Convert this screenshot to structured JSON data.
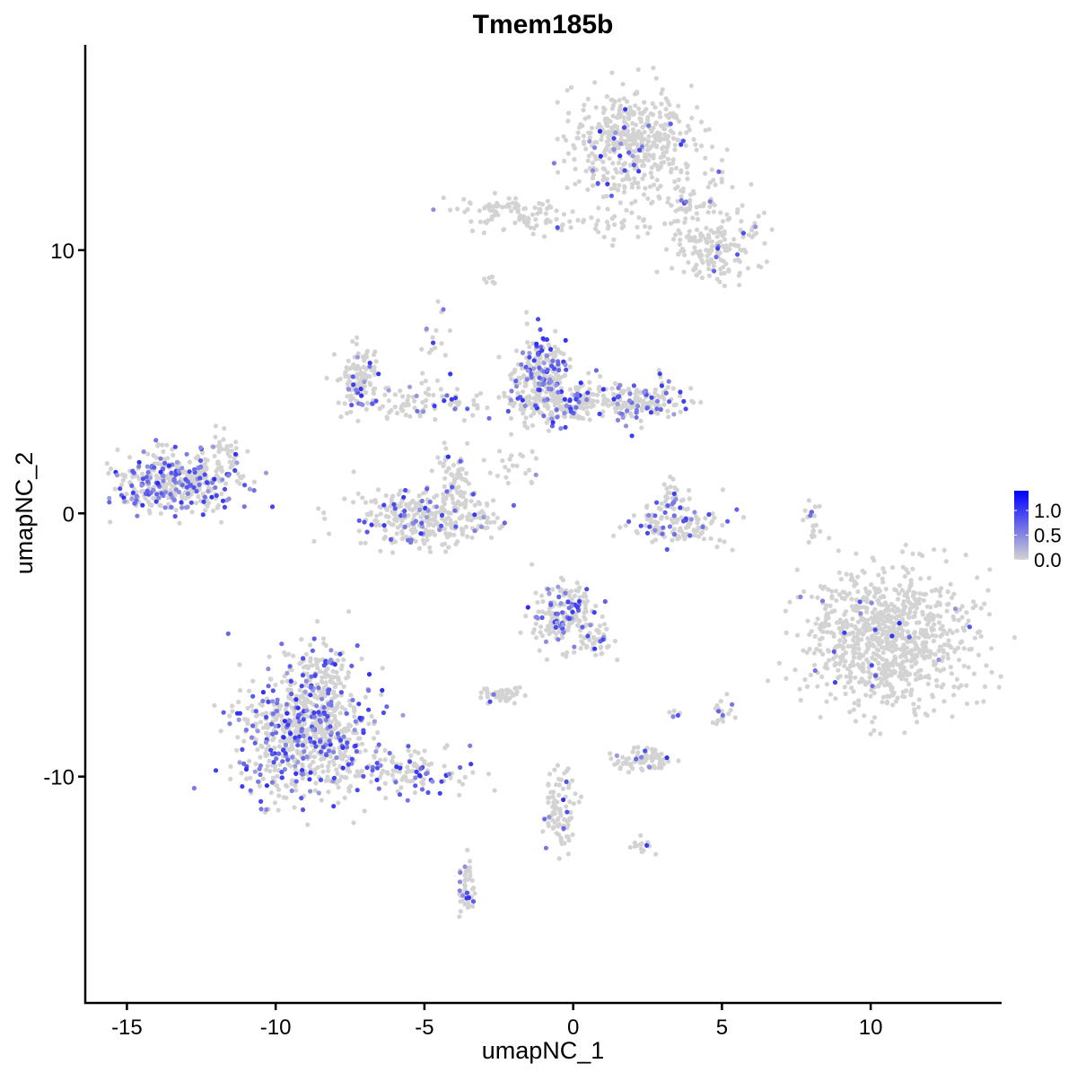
{
  "chart_data": {
    "type": "scatter",
    "title": "Tmem185b",
    "xlabel": "umapNC_1",
    "ylabel": "umapNC_2",
    "xlim": [
      -16.4,
      14.4
    ],
    "ylim": [
      -18.6,
      17.8
    ],
    "x_ticks": [
      -15,
      -10,
      -5,
      0,
      5,
      10
    ],
    "y_ticks": [
      -10,
      0,
      10
    ],
    "x_tick_labels": [
      "-15",
      "-10",
      "-5",
      "0",
      "5",
      "10"
    ],
    "y_tick_labels": [
      "-10",
      "0",
      "10"
    ],
    "grid": false,
    "color_scale": {
      "low": "#D3D3D3",
      "high": "#0000FF",
      "min": 0,
      "max": 1.4
    },
    "legend": {
      "position": "right",
      "ticks": [
        1.0,
        0.5,
        0.0
      ],
      "tick_labels": [
        "1.0",
        "0.5",
        "0.0"
      ]
    },
    "note_values": "clusters approximate the point clouds: center and spread in data units, n = approx. cell count, expressed = fraction of cells with expression > 0",
    "clusters": [
      {
        "center": [
          1.9,
          14.2
        ],
        "spread": [
          1.0,
          1.0
        ],
        "n": 450,
        "expressed": 0.05
      },
      {
        "center": [
          4.8,
          10.0
        ],
        "spread": [
          0.8,
          0.7
        ],
        "n": 170,
        "expressed": 0.04
      },
      {
        "center": [
          3.6,
          12.0
        ],
        "spread": [
          1.0,
          0.7
        ],
        "n": 80,
        "expressed": 0.04
      },
      {
        "center": [
          -2.0,
          11.4
        ],
        "spread": [
          0.9,
          0.35
        ],
        "n": 90,
        "expressed": 0.03
      },
      {
        "center": [
          0.8,
          11.0
        ],
        "spread": [
          1.0,
          0.3
        ],
        "n": 40,
        "expressed": 0.02
      },
      {
        "center": [
          -1.0,
          5.3
        ],
        "spread": [
          0.45,
          0.7
        ],
        "n": 230,
        "expressed": 0.25
      },
      {
        "center": [
          -0.7,
          4.2
        ],
        "spread": [
          0.8,
          0.5
        ],
        "n": 160,
        "expressed": 0.15
      },
      {
        "center": [
          1.9,
          4.3
        ],
        "spread": [
          1.0,
          0.4
        ],
        "n": 200,
        "expressed": 0.15
      },
      {
        "center": [
          -7.2,
          5.1
        ],
        "spread": [
          0.4,
          0.6
        ],
        "n": 110,
        "expressed": 0.2
      },
      {
        "center": [
          -5.0,
          4.2
        ],
        "spread": [
          1.3,
          0.3
        ],
        "n": 90,
        "expressed": 0.08
      },
      {
        "center": [
          -5.0,
          -0.2
        ],
        "spread": [
          1.2,
          0.5
        ],
        "n": 330,
        "expressed": 0.15
      },
      {
        "center": [
          -4.0,
          1.2
        ],
        "spread": [
          0.3,
          0.6
        ],
        "n": 60,
        "expressed": 0.08
      },
      {
        "center": [
          -13.3,
          1.2
        ],
        "spread": [
          1.0,
          0.55
        ],
        "n": 420,
        "expressed": 0.33
      },
      {
        "center": [
          -11.8,
          2.2
        ],
        "spread": [
          0.3,
          0.4
        ],
        "n": 30,
        "expressed": 0.05
      },
      {
        "center": [
          3.5,
          -0.6
        ],
        "spread": [
          0.8,
          0.35
        ],
        "n": 120,
        "expressed": 0.2
      },
      {
        "center": [
          3.3,
          0.6
        ],
        "spread": [
          0.3,
          0.4
        ],
        "n": 40,
        "expressed": 0.2
      },
      {
        "center": [
          10.6,
          -4.8
        ],
        "spread": [
          1.35,
          1.35
        ],
        "n": 900,
        "expressed": 0.02
      },
      {
        "center": [
          -0.3,
          -3.9
        ],
        "spread": [
          0.55,
          0.55
        ],
        "n": 200,
        "expressed": 0.2
      },
      {
        "center": [
          0.8,
          -4.8
        ],
        "spread": [
          0.3,
          0.3
        ],
        "n": 40,
        "expressed": 0.15
      },
      {
        "center": [
          -9.0,
          -8.4
        ],
        "spread": [
          1.1,
          1.2
        ],
        "n": 700,
        "expressed": 0.28
      },
      {
        "center": [
          -8.5,
          -6.3
        ],
        "spread": [
          0.5,
          0.6
        ],
        "n": 120,
        "expressed": 0.2
      },
      {
        "center": [
          -5.4,
          -9.8
        ],
        "spread": [
          1.0,
          0.4
        ],
        "n": 120,
        "expressed": 0.25
      },
      {
        "center": [
          -2.4,
          -6.9
        ],
        "spread": [
          0.4,
          0.15
        ],
        "n": 50,
        "expressed": 0.02
      },
      {
        "center": [
          2.3,
          -9.4
        ],
        "spread": [
          0.5,
          0.2
        ],
        "n": 70,
        "expressed": 0.1
      },
      {
        "center": [
          -0.4,
          -11.3
        ],
        "spread": [
          0.25,
          0.9
        ],
        "n": 90,
        "expressed": 0.1
      },
      {
        "center": [
          -3.6,
          -14.4
        ],
        "spread": [
          0.15,
          0.55
        ],
        "n": 50,
        "expressed": 0.2
      },
      {
        "center": [
          8.0,
          -0.3
        ],
        "spread": [
          0.15,
          0.5
        ],
        "n": 20,
        "expressed": 0.05
      },
      {
        "center": [
          5.0,
          -7.5
        ],
        "spread": [
          0.2,
          0.3
        ],
        "n": 20,
        "expressed": 0.2
      },
      {
        "center": [
          3.4,
          -7.6
        ],
        "spread": [
          0.1,
          0.1
        ],
        "n": 6,
        "expressed": 0.5
      },
      {
        "center": [
          2.3,
          -12.6
        ],
        "spread": [
          0.2,
          0.2
        ],
        "n": 15,
        "expressed": 0.1
      },
      {
        "center": [
          -2.0,
          1.8
        ],
        "spread": [
          0.6,
          0.6
        ],
        "n": 25,
        "expressed": 0.1
      },
      {
        "center": [
          -4.6,
          6.2
        ],
        "spread": [
          0.3,
          0.8
        ],
        "n": 20,
        "expressed": 0.15
      },
      {
        "center": [
          -2.8,
          8.9
        ],
        "spread": [
          0.1,
          0.1
        ],
        "n": 8,
        "expressed": 0.0
      }
    ]
  }
}
